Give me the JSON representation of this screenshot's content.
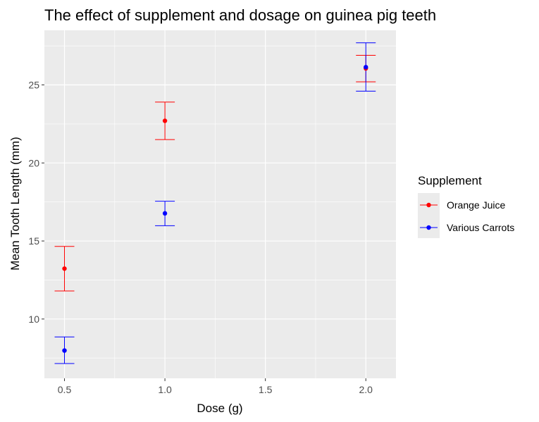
{
  "chart_data": {
    "type": "scatter",
    "title": "The effect of supplement and dosage on guinea pig teeth",
    "xlabel": "Dose (g)",
    "ylabel": "Mean Tooth Length (mm)",
    "x_ticks": [
      "0.5",
      "1.0",
      "1.5",
      "2.0"
    ],
    "y_ticks": [
      "10",
      "15",
      "20",
      "25"
    ],
    "xlim": [
      0.4,
      2.15
    ],
    "ylim": [
      6.2,
      28.5
    ],
    "grid": true,
    "error_bars": true,
    "legend": {
      "title": "Supplement",
      "position": "right"
    },
    "series": [
      {
        "name": "Orange Juice",
        "color": "#ff0000",
        "points": [
          {
            "x": 0.5,
            "y": 13.23,
            "low": 11.8,
            "high": 14.65
          },
          {
            "x": 1.0,
            "y": 22.7,
            "low": 21.5,
            "high": 23.9
          },
          {
            "x": 2.0,
            "y": 26.06,
            "low": 25.2,
            "high": 26.9
          }
        ]
      },
      {
        "name": "Various Carrots",
        "color": "#0000ff",
        "points": [
          {
            "x": 0.5,
            "y": 7.98,
            "low": 7.15,
            "high": 8.85
          },
          {
            "x": 1.0,
            "y": 16.77,
            "low": 15.98,
            "high": 17.55
          },
          {
            "x": 2.0,
            "y": 26.14,
            "low": 24.6,
            "high": 27.7
          }
        ]
      }
    ],
    "panel_color": "#ebebeb",
    "grid_color": "#ffffff"
  }
}
